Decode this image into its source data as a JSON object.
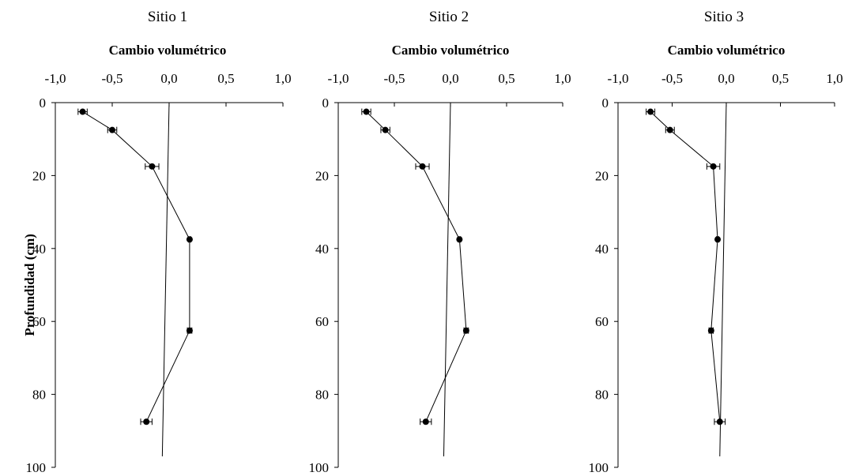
{
  "figure": {
    "ylabel": "Profundidad (cm)"
  },
  "chart_data": [
    {
      "type": "line",
      "title": "Sitio 1",
      "xlabel": "Cambio volumétrico",
      "ylabel": "Profundidad (cm)",
      "xlim": [
        -1.0,
        1.0
      ],
      "ylim": [
        0,
        100
      ],
      "y_inverted": true,
      "x_axis_position": "top",
      "x_tick_labels": [
        "-1,0",
        "-0,5",
        "0,0",
        "0,5",
        "1,0"
      ],
      "y_tick_labels": [
        "0",
        "20",
        "40",
        "60",
        "80",
        "100"
      ],
      "series": [
        {
          "x": [
            -0.76,
            -0.5,
            -0.15,
            0.18,
            0.18,
            -0.2
          ],
          "y": [
            2.5,
            7.5,
            17.5,
            37.5,
            62.5,
            87.5
          ],
          "x_error": [
            0.04,
            0.04,
            0.06,
            0.01,
            0.02,
            0.05
          ],
          "markers": true
        }
      ],
      "reference_line": {
        "x": [
          0.0,
          -0.06
        ],
        "y": [
          0,
          97
        ]
      }
    },
    {
      "type": "line",
      "title": "Sitio 2",
      "xlabel": "Cambio volumétrico",
      "ylabel": "",
      "xlim": [
        -1.0,
        1.0
      ],
      "ylim": [
        0,
        100
      ],
      "y_inverted": true,
      "x_axis_position": "top",
      "x_tick_labels": [
        "-1,0",
        "-0,5",
        "0,0",
        "0,5",
        "1,0"
      ],
      "y_tick_labels": [
        "0",
        "20",
        "40",
        "60",
        "80",
        "100"
      ],
      "series": [
        {
          "x": [
            -0.75,
            -0.58,
            -0.25,
            0.08,
            0.14,
            -0.22
          ],
          "y": [
            2.5,
            7.5,
            17.5,
            37.5,
            62.5,
            87.5
          ],
          "x_error": [
            0.04,
            0.04,
            0.06,
            0.01,
            0.02,
            0.05
          ],
          "markers": true
        }
      ],
      "reference_line": {
        "x": [
          0.0,
          -0.06
        ],
        "y": [
          0,
          97
        ]
      }
    },
    {
      "type": "line",
      "title": "Sitio 3",
      "xlabel": "Cambio volumétrico",
      "ylabel": "",
      "xlim": [
        -1.0,
        1.0
      ],
      "ylim": [
        0,
        100
      ],
      "y_inverted": true,
      "x_axis_position": "top",
      "x_tick_labels": [
        "-1,0",
        "-0,5",
        "0,0",
        "0,5",
        "1,0"
      ],
      "y_tick_labels": [
        "0",
        "20",
        "40",
        "60",
        "80",
        "100"
      ],
      "series": [
        {
          "x": [
            -0.7,
            -0.52,
            -0.12,
            -0.08,
            -0.14,
            -0.06
          ],
          "y": [
            2.5,
            7.5,
            17.5,
            37.5,
            62.5,
            87.5
          ],
          "x_error": [
            0.04,
            0.04,
            0.06,
            0.01,
            0.02,
            0.05
          ],
          "markers": true
        }
      ],
      "reference_line": {
        "x": [
          0.0,
          -0.06
        ],
        "y": [
          0,
          97
        ]
      }
    }
  ]
}
